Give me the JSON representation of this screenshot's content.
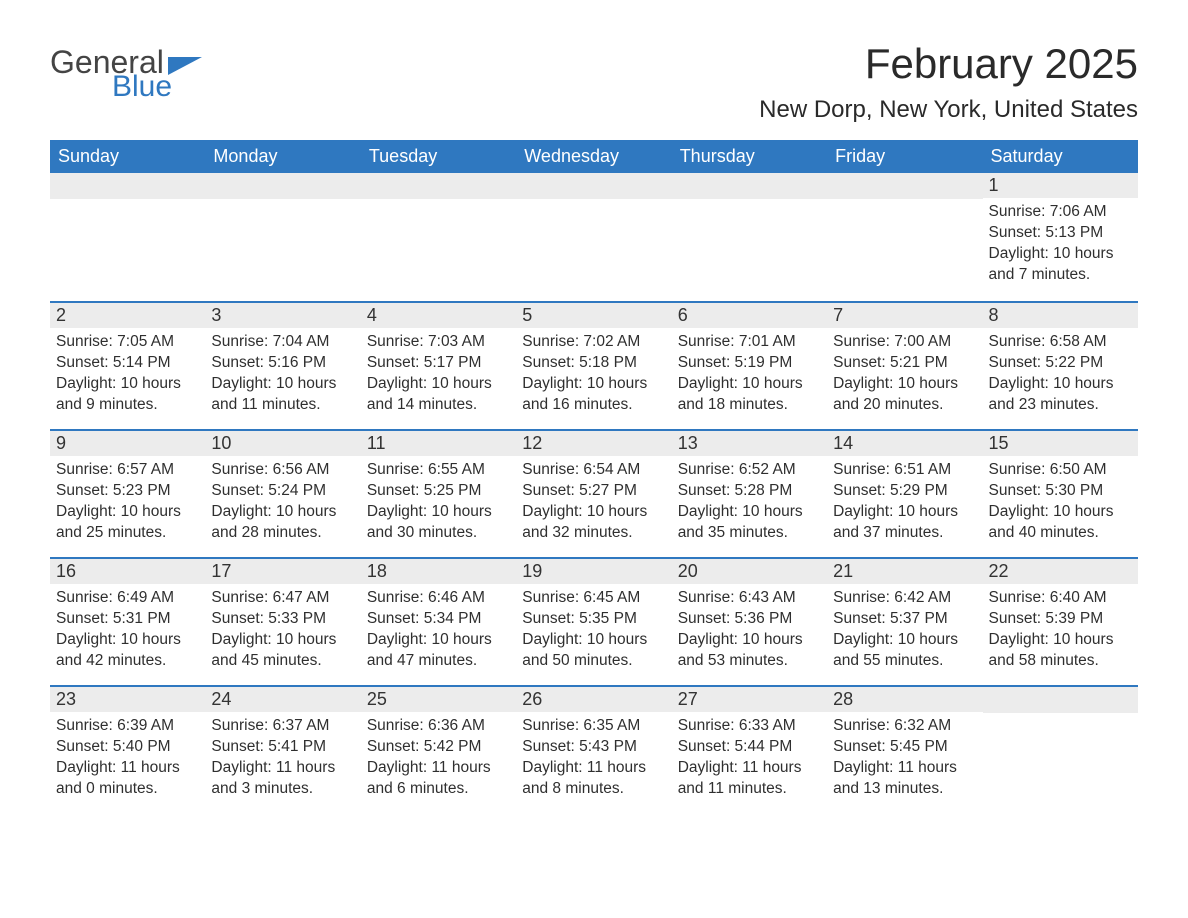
{
  "logo": {
    "text1": "General",
    "text2": "Blue"
  },
  "title": "February 2025",
  "location": "New Dorp, New York, United States",
  "weekdays": [
    "Sunday",
    "Monday",
    "Tuesday",
    "Wednesday",
    "Thursday",
    "Friday",
    "Saturday"
  ],
  "colors": {
    "header_bg": "#2f78c0",
    "header_text": "#ffffff",
    "daynum_bg": "#ececec",
    "row_border": "#2f78c0",
    "text": "#2a2a2a"
  },
  "weeks": [
    [
      null,
      null,
      null,
      null,
      null,
      null,
      {
        "n": "1",
        "sunrise": "7:06 AM",
        "sunset": "5:13 PM",
        "daylight": "10 hours and 7 minutes."
      }
    ],
    [
      {
        "n": "2",
        "sunrise": "7:05 AM",
        "sunset": "5:14 PM",
        "daylight": "10 hours and 9 minutes."
      },
      {
        "n": "3",
        "sunrise": "7:04 AM",
        "sunset": "5:16 PM",
        "daylight": "10 hours and 11 minutes."
      },
      {
        "n": "4",
        "sunrise": "7:03 AM",
        "sunset": "5:17 PM",
        "daylight": "10 hours and 14 minutes."
      },
      {
        "n": "5",
        "sunrise": "7:02 AM",
        "sunset": "5:18 PM",
        "daylight": "10 hours and 16 minutes."
      },
      {
        "n": "6",
        "sunrise": "7:01 AM",
        "sunset": "5:19 PM",
        "daylight": "10 hours and 18 minutes."
      },
      {
        "n": "7",
        "sunrise": "7:00 AM",
        "sunset": "5:21 PM",
        "daylight": "10 hours and 20 minutes."
      },
      {
        "n": "8",
        "sunrise": "6:58 AM",
        "sunset": "5:22 PM",
        "daylight": "10 hours and 23 minutes."
      }
    ],
    [
      {
        "n": "9",
        "sunrise": "6:57 AM",
        "sunset": "5:23 PM",
        "daylight": "10 hours and 25 minutes."
      },
      {
        "n": "10",
        "sunrise": "6:56 AM",
        "sunset": "5:24 PM",
        "daylight": "10 hours and 28 minutes."
      },
      {
        "n": "11",
        "sunrise": "6:55 AM",
        "sunset": "5:25 PM",
        "daylight": "10 hours and 30 minutes."
      },
      {
        "n": "12",
        "sunrise": "6:54 AM",
        "sunset": "5:27 PM",
        "daylight": "10 hours and 32 minutes."
      },
      {
        "n": "13",
        "sunrise": "6:52 AM",
        "sunset": "5:28 PM",
        "daylight": "10 hours and 35 minutes."
      },
      {
        "n": "14",
        "sunrise": "6:51 AM",
        "sunset": "5:29 PM",
        "daylight": "10 hours and 37 minutes."
      },
      {
        "n": "15",
        "sunrise": "6:50 AM",
        "sunset": "5:30 PM",
        "daylight": "10 hours and 40 minutes."
      }
    ],
    [
      {
        "n": "16",
        "sunrise": "6:49 AM",
        "sunset": "5:31 PM",
        "daylight": "10 hours and 42 minutes."
      },
      {
        "n": "17",
        "sunrise": "6:47 AM",
        "sunset": "5:33 PM",
        "daylight": "10 hours and 45 minutes."
      },
      {
        "n": "18",
        "sunrise": "6:46 AM",
        "sunset": "5:34 PM",
        "daylight": "10 hours and 47 minutes."
      },
      {
        "n": "19",
        "sunrise": "6:45 AM",
        "sunset": "5:35 PM",
        "daylight": "10 hours and 50 minutes."
      },
      {
        "n": "20",
        "sunrise": "6:43 AM",
        "sunset": "5:36 PM",
        "daylight": "10 hours and 53 minutes."
      },
      {
        "n": "21",
        "sunrise": "6:42 AM",
        "sunset": "5:37 PM",
        "daylight": "10 hours and 55 minutes."
      },
      {
        "n": "22",
        "sunrise": "6:40 AM",
        "sunset": "5:39 PM",
        "daylight": "10 hours and 58 minutes."
      }
    ],
    [
      {
        "n": "23",
        "sunrise": "6:39 AM",
        "sunset": "5:40 PM",
        "daylight": "11 hours and 0 minutes."
      },
      {
        "n": "24",
        "sunrise": "6:37 AM",
        "sunset": "5:41 PM",
        "daylight": "11 hours and 3 minutes."
      },
      {
        "n": "25",
        "sunrise": "6:36 AM",
        "sunset": "5:42 PM",
        "daylight": "11 hours and 6 minutes."
      },
      {
        "n": "26",
        "sunrise": "6:35 AM",
        "sunset": "5:43 PM",
        "daylight": "11 hours and 8 minutes."
      },
      {
        "n": "27",
        "sunrise": "6:33 AM",
        "sunset": "5:44 PM",
        "daylight": "11 hours and 11 minutes."
      },
      {
        "n": "28",
        "sunrise": "6:32 AM",
        "sunset": "5:45 PM",
        "daylight": "11 hours and 13 minutes."
      },
      null
    ]
  ],
  "labels": {
    "sunrise": "Sunrise: ",
    "sunset": "Sunset: ",
    "daylight": "Daylight: "
  }
}
